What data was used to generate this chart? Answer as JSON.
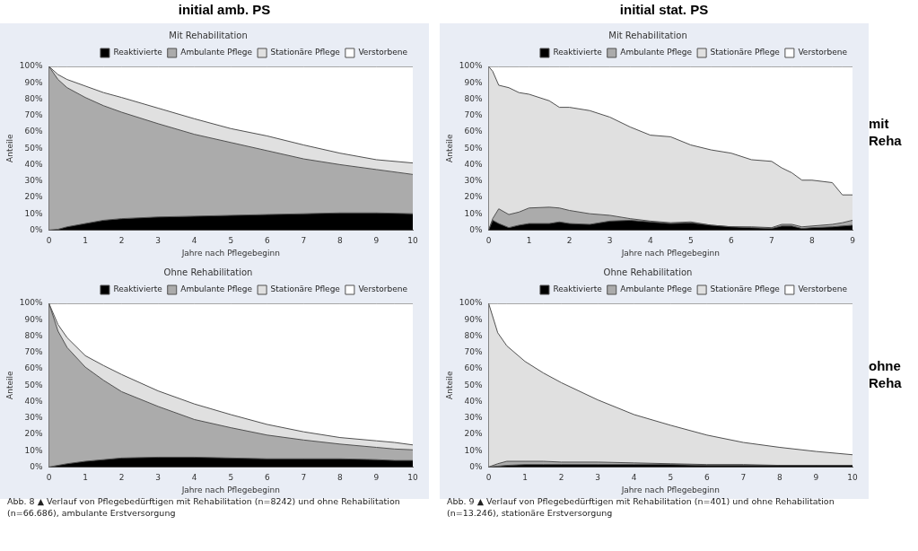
{
  "chart_data": [
    {
      "type": "area",
      "title": "Mit Rehabilitation",
      "xlabel": "Jahre nach Pflegebeginn",
      "ylabel": "Anteile",
      "stacked": true,
      "legend": "top right",
      "annotations": [
        "initial amb. PS"
      ],
      "xlim": [
        0,
        10
      ],
      "xticks": [
        0,
        1,
        2,
        3,
        4,
        5,
        6,
        7,
        8,
        9,
        10
      ],
      "ylim": [
        0,
        100
      ],
      "yticks": [
        {
          "value": 0,
          "label": "0%"
        },
        {
          "value": 10,
          "label": "10%"
        },
        {
          "value": 20,
          "label": "20%"
        },
        {
          "value": 30,
          "label": "30%"
        },
        {
          "value": 40,
          "label": "40%"
        },
        {
          "value": 50,
          "label": "50%"
        },
        {
          "value": 60,
          "label": "60%"
        },
        {
          "value": 70,
          "label": "70%"
        },
        {
          "value": 80,
          "label": "80%"
        },
        {
          "value": 90,
          "label": "90%"
        },
        {
          "value": 100,
          "label": "100%"
        }
      ],
      "x": [
        0,
        0.25,
        0.5,
        1,
        1.5,
        2,
        3,
        4,
        5,
        6,
        7,
        8,
        9,
        10
      ],
      "series": [
        {
          "name": "Reaktivierte",
          "color": "#000000",
          "values": [
            0,
            0.5,
            2,
            4,
            6,
            7,
            8,
            8.5,
            9,
            9.5,
            10,
            10.5,
            10.5,
            10
          ]
        },
        {
          "name": "Ambulante Pflege",
          "color": "#ababab",
          "values": [
            100,
            91.5,
            85,
            77,
            70,
            65,
            57,
            50,
            44.5,
            39,
            33.5,
            29.5,
            26.5,
            24
          ]
        },
        {
          "name": "Stationäre Pflege",
          "color": "#e0e0e0",
          "values": [
            0,
            3,
            5,
            7,
            8,
            9,
            9.5,
            9.5,
            8.5,
            9,
            8.5,
            7,
            6,
            7
          ]
        },
        {
          "name": "Verstorbene",
          "color": "#ffffff",
          "values": [
            0,
            5,
            8,
            12,
            16,
            19,
            25.5,
            32,
            38,
            42.5,
            48,
            53,
            57,
            59
          ]
        }
      ]
    },
    {
      "type": "area",
      "title": "Mit Rehabilitation",
      "xlabel": "Jahre nach Pflegebeginn",
      "ylabel": "Anteile",
      "stacked": true,
      "legend": "top right",
      "annotations": [
        "initial stat. PS",
        "mit Reha"
      ],
      "xlim": [
        0,
        9
      ],
      "xticks": [
        0,
        1,
        2,
        3,
        4,
        5,
        6,
        7,
        8,
        9
      ],
      "ylim": [
        0,
        100
      ],
      "yticks": [
        {
          "value": 0,
          "label": "0%"
        },
        {
          "value": 10,
          "label": "10%"
        },
        {
          "value": 20,
          "label": "20%"
        },
        {
          "value": 30,
          "label": "30%"
        },
        {
          "value": 40,
          "label": "40%"
        },
        {
          "value": 50,
          "label": "50%"
        },
        {
          "value": 60,
          "label": "60%"
        },
        {
          "value": 70,
          "label": "70%"
        },
        {
          "value": 80,
          "label": "80%"
        },
        {
          "value": 90,
          "label": "90%"
        },
        {
          "value": 100,
          "label": "100%"
        }
      ],
      "x": [
        0,
        0.1,
        0.25,
        0.5,
        0.75,
        1,
        1.5,
        1.75,
        2,
        2.5,
        3,
        3.5,
        4,
        4.5,
        5,
        5.5,
        6,
        6.5,
        7,
        7.25,
        7.5,
        7.75,
        8,
        8.5,
        8.75,
        9
      ],
      "series": [
        {
          "name": "Reaktivierte",
          "color": "#000000",
          "values": [
            0,
            6,
            4,
            1.5,
            3,
            4,
            4,
            5,
            4,
            3.5,
            5.5,
            6,
            5,
            4,
            4.5,
            3,
            2,
            1.5,
            1,
            2.5,
            2.5,
            1,
            1.5,
            2,
            2.5,
            3
          ]
        },
        {
          "name": "Ambulante Pflege",
          "color": "#ababab",
          "values": [
            0,
            1,
            9,
            8,
            8,
            9.5,
            10,
            8.5,
            8,
            6.5,
            3.5,
            1,
            0.5,
            0.5,
            0.5,
            0,
            0,
            0.5,
            0.5,
            1,
            1,
            1,
            1,
            1.5,
            2,
            3
          ]
        },
        {
          "name": "Stationäre Pflege",
          "color": "#e0e0e0",
          "values": [
            100,
            90,
            75.5,
            77.5,
            73,
            69.5,
            65,
            61.5,
            63,
            63,
            60,
            56,
            52.5,
            52.5,
            47,
            46,
            45,
            41,
            40.5,
            34.5,
            31.5,
            28.5,
            28,
            25.5,
            17,
            15.5
          ]
        },
        {
          "name": "Verstorbene",
          "color": "#ffffff",
          "values": [
            0,
            3,
            11.5,
            13,
            16,
            17,
            21,
            25,
            25,
            27,
            31,
            37,
            42,
            43,
            48,
            51,
            53,
            57,
            58,
            62,
            65,
            69.5,
            69.5,
            71,
            78.5,
            78.5
          ]
        }
      ]
    },
    {
      "type": "area",
      "title": "Ohne Rehabilitation",
      "xlabel": "Jahre nach Pflegebeginn",
      "ylabel": "Anteile",
      "stacked": true,
      "legend": "top right",
      "annotations": [
        "Abb. 8 ▲ Verlauf von Pflegebedürftigen mit Rehabilitation (n=8242) und ohne Rehabilitation (n=66.686), ambulante Erstversorgung"
      ],
      "xlim": [
        0,
        10
      ],
      "xticks": [
        0,
        1,
        2,
        3,
        4,
        5,
        6,
        7,
        8,
        9,
        10
      ],
      "ylim": [
        0,
        100
      ],
      "yticks": [
        {
          "value": 0,
          "label": "0%"
        },
        {
          "value": 10,
          "label": "10%"
        },
        {
          "value": 20,
          "label": "20%"
        },
        {
          "value": 30,
          "label": "30%"
        },
        {
          "value": 40,
          "label": "40%"
        },
        {
          "value": 50,
          "label": "50%"
        },
        {
          "value": 60,
          "label": "60%"
        },
        {
          "value": 70,
          "label": "70%"
        },
        {
          "value": 80,
          "label": "80%"
        },
        {
          "value": 90,
          "label": "90%"
        },
        {
          "value": 100,
          "label": "100%"
        }
      ],
      "x": [
        0,
        0.25,
        0.5,
        1,
        1.5,
        2,
        3,
        4,
        5,
        6,
        7,
        8,
        9,
        9.5,
        10
      ],
      "series": [
        {
          "name": "Reaktivierte",
          "color": "#000000",
          "values": [
            0,
            1,
            2,
            3.5,
            4.5,
            5.5,
            6,
            6,
            5.5,
            5,
            5,
            5,
            4.5,
            4,
            4
          ]
        },
        {
          "name": "Ambulante Pflege",
          "color": "#ababab",
          "values": [
            100,
            82,
            71,
            57.5,
            48.5,
            40.5,
            31,
            23,
            18.5,
            14.5,
            11.5,
            9,
            7.5,
            7,
            6.5
          ]
        },
        {
          "name": "Stationäre Pflege",
          "color": "#e0e0e0",
          "values": [
            0,
            4,
            6,
            7,
            9,
            10.5,
            9.5,
            9.5,
            8,
            6.5,
            5,
            4,
            4,
            4,
            3
          ]
        },
        {
          "name": "Verstorbene",
          "color": "#ffffff",
          "values": [
            0,
            13,
            21,
            32,
            38,
            43.5,
            53.5,
            61.5,
            68,
            74,
            78.5,
            82,
            84,
            85,
            86.5
          ]
        }
      ]
    },
    {
      "type": "area",
      "title": "Ohne Rehabilitation",
      "xlabel": "Jahre nach Pflegebeginn",
      "ylabel": "Anteile",
      "stacked": true,
      "legend": "top right",
      "annotations": [
        "ohne Reha",
        "Abb. 9 ▲ Verlauf von Pflegebedürftigen mit Rehabilitation (n=401) und ohne Rehabilitation (n=13.246), stationäre Erstversorgung"
      ],
      "xlim": [
        0,
        10
      ],
      "xticks": [
        0,
        1,
        2,
        3,
        4,
        5,
        6,
        7,
        8,
        9,
        10
      ],
      "ylim": [
        0,
        100
      ],
      "yticks": [
        {
          "value": 0,
          "label": "0%"
        },
        {
          "value": 10,
          "label": "10%"
        },
        {
          "value": 20,
          "label": "20%"
        },
        {
          "value": 30,
          "label": "30%"
        },
        {
          "value": 40,
          "label": "40%"
        },
        {
          "value": 50,
          "label": "50%"
        },
        {
          "value": 60,
          "label": "60%"
        },
        {
          "value": 70,
          "label": "70%"
        },
        {
          "value": 80,
          "label": "80%"
        },
        {
          "value": 90,
          "label": "90%"
        },
        {
          "value": 100,
          "label": "100%"
        }
      ],
      "x": [
        0,
        0.25,
        0.5,
        1,
        1.5,
        2,
        3,
        4,
        5,
        6,
        7,
        8,
        9,
        10
      ],
      "series": [
        {
          "name": "Reaktivierte",
          "color": "#000000",
          "values": [
            0,
            0.5,
            1,
            1.5,
            1.5,
            1.5,
            1.5,
            1.5,
            1.5,
            1,
            1,
            1,
            1,
            1
          ]
        },
        {
          "name": "Ambulante Pflege",
          "color": "#ababab",
          "values": [
            0,
            1.5,
            2.5,
            2,
            2,
            1.5,
            1.5,
            1,
            0.5,
            0.5,
            0.5,
            0,
            0,
            0
          ]
        },
        {
          "name": "Stationäre Pflege",
          "color": "#e0e0e0",
          "values": [
            100,
            80,
            70.5,
            61,
            54,
            48.5,
            38,
            29.5,
            23.5,
            18,
            13.5,
            11,
            8.5,
            6.5
          ]
        },
        {
          "name": "Verstorbene",
          "color": "#ffffff",
          "values": [
            0,
            18,
            26,
            35.5,
            42.5,
            48.5,
            59,
            68,
            74.5,
            80.5,
            85,
            88,
            90.5,
            92.5
          ]
        }
      ]
    }
  ]
}
